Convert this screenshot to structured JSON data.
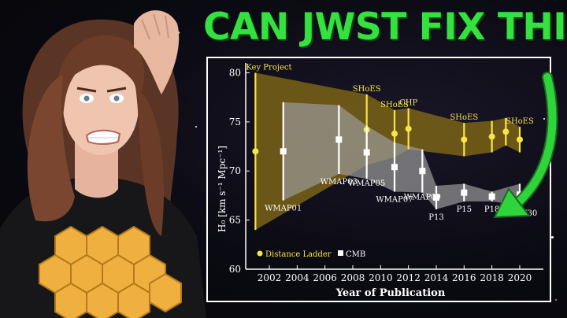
{
  "headline": "CAN JWST FIX THIS?",
  "colors": {
    "headline_green": "#33e23f",
    "distance_ladder": "#f5e54a",
    "cmb": "#ffffff",
    "ladder_band": "#7a6316",
    "cmb_band": "#9a9a9a",
    "arrow_green": "#2fd43a"
  },
  "chart_data": {
    "type": "scatter",
    "title": "",
    "xlabel": "Year of Publication",
    "ylabel": "H₀ [km s⁻¹ Mpc⁻¹]",
    "xlim": [
      2000.3,
      2021.7
    ],
    "ylim": [
      60,
      81
    ],
    "xticks": [
      "2002",
      "2004",
      "2006",
      "2008",
      "2010",
      "2012",
      "2014",
      "2016",
      "2018",
      "2020"
    ],
    "yticks": [
      "60",
      "65",
      "70",
      "75",
      "80"
    ],
    "legend": {
      "position": "bottom-left",
      "entries": [
        "Distance Ladder",
        "CMB"
      ]
    },
    "series": [
      {
        "name": "Distance Ladder",
        "color": "#f5e54a",
        "points": [
          {
            "x": 2001,
            "y": 72.0,
            "err": 8.0,
            "label": "Key Project"
          },
          {
            "x": 2009,
            "y": 74.2,
            "err": 3.6,
            "label": "SHoES"
          },
          {
            "x": 2011,
            "y": 73.8,
            "err": 2.4,
            "label": "SHoES"
          },
          {
            "x": 2012,
            "y": 74.3,
            "err": 2.1,
            "label": "CHP"
          },
          {
            "x": 2016,
            "y": 73.2,
            "err": 1.7,
            "label": "SHoES"
          },
          {
            "x": 2018,
            "y": 73.5,
            "err": 1.6,
            "label": ""
          },
          {
            "x": 2019,
            "y": 74.0,
            "err": 1.4,
            "label": ""
          },
          {
            "x": 2020,
            "y": 73.2,
            "err": 1.3,
            "label": "SHoES"
          }
        ]
      },
      {
        "name": "CMB",
        "color": "#ffffff",
        "points": [
          {
            "x": 2003,
            "y": 72.0,
            "err": 5.0,
            "label": "WMAP01"
          },
          {
            "x": 2007,
            "y": 73.2,
            "err": 3.5,
            "label": "WMAP03"
          },
          {
            "x": 2009,
            "y": 71.9,
            "err": 2.7,
            "label": "WMAP05"
          },
          {
            "x": 2011,
            "y": 70.4,
            "err": 2.5,
            "label": "WMAP07"
          },
          {
            "x": 2013,
            "y": 70.0,
            "err": 2.2,
            "label": "WMAP09"
          },
          {
            "x": 2014,
            "y": 67.3,
            "err": 1.2,
            "label": "P13"
          },
          {
            "x": 2016,
            "y": 67.8,
            "err": 0.9,
            "label": "P15"
          },
          {
            "x": 2018,
            "y": 67.4,
            "err": 0.5,
            "label": "P18"
          },
          {
            "x": 2020,
            "y": 67.6,
            "err": 1.1,
            "label": "ACTW30"
          }
        ]
      }
    ]
  }
}
